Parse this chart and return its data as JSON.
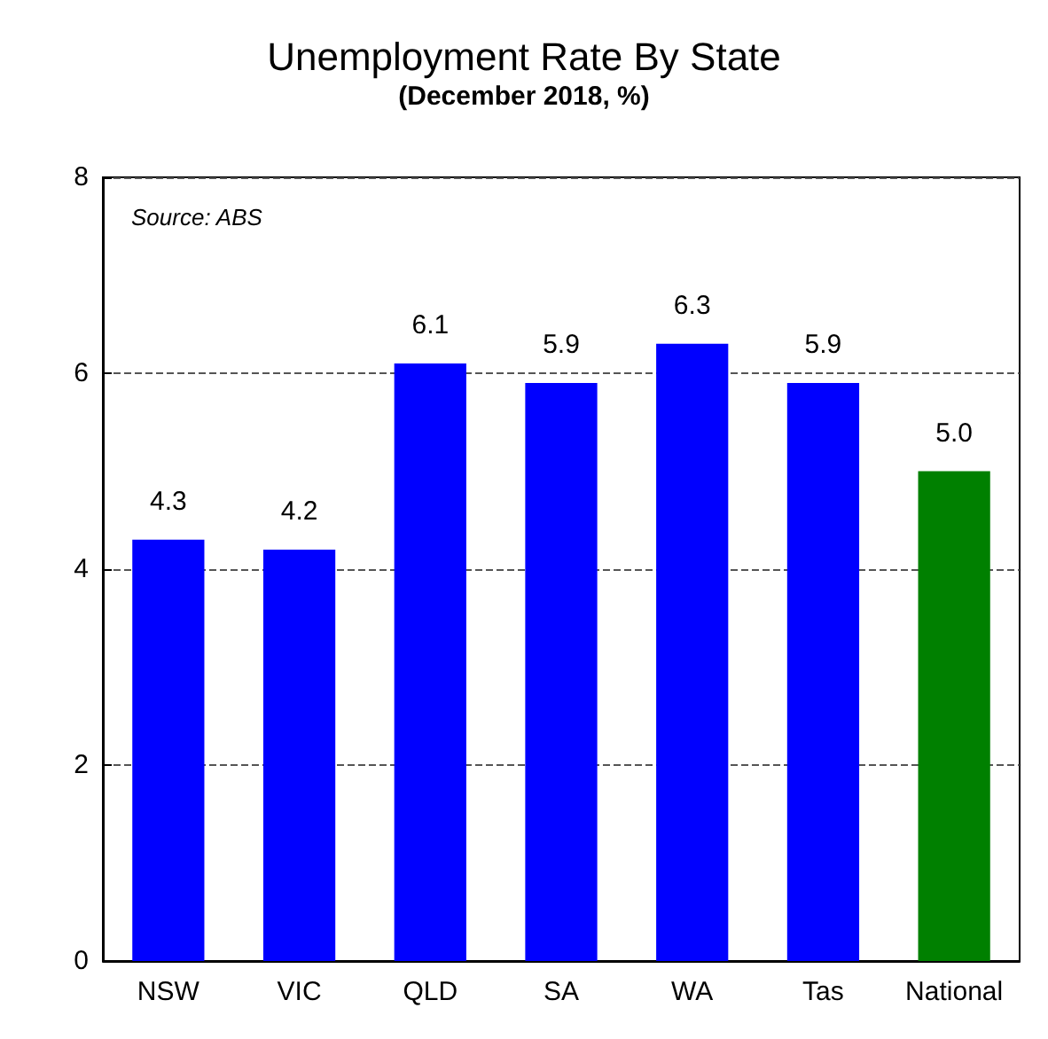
{
  "chart_data": {
    "type": "bar",
    "title": "Unemployment Rate By State",
    "subtitle": "(December 2018, %)",
    "categories": [
      "NSW",
      "VIC",
      "QLD",
      "SA",
      "WA",
      "Tas",
      "National"
    ],
    "values": [
      4.3,
      4.2,
      6.1,
      5.9,
      6.3,
      5.9,
      5.0
    ],
    "colors": [
      "#0000ff",
      "#0000ff",
      "#0000ff",
      "#0000ff",
      "#0000ff",
      "#0000ff",
      "#008000"
    ],
    "value_labels": [
      "4.3",
      "4.2",
      "6.1",
      "5.9",
      "6.3",
      "5.9",
      "5.0"
    ],
    "ylim": [
      0,
      8
    ],
    "yticks": [
      0,
      2,
      4,
      6,
      8
    ],
    "grid": "y",
    "annotations": [
      "Source: ABS"
    ]
  }
}
